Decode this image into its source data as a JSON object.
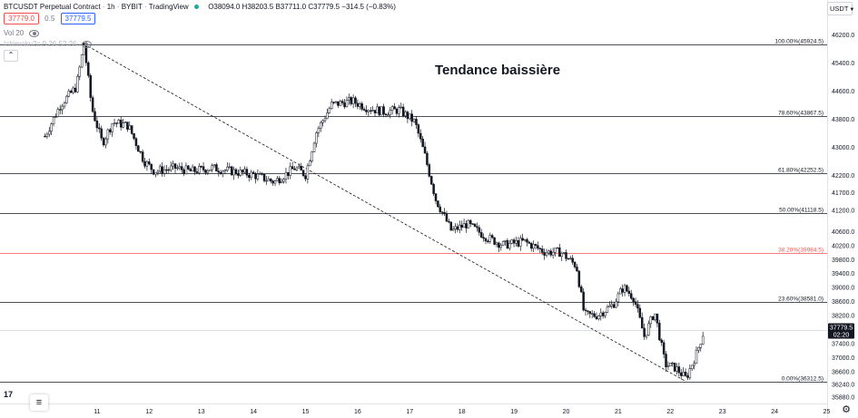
{
  "header": {
    "symbol": "BTCUSDT Perpetual Contract",
    "interval": "1h",
    "exchange": "BYBIT",
    "source": "TradingView",
    "ohlc": "O38094.0 H38203.5 B37711.0 C37779.5 −314.5 (−0.83%)",
    "bid": "37779.0",
    "spread": "0.5",
    "ask": "37779.5",
    "volume": "Vol 20",
    "indicator": "Ichimoku2c 9 26 52 26"
  },
  "currency_button": "USDT",
  "chart_data": {
    "type": "candlestick",
    "title": "Tendance baissière",
    "x_ticks": [
      "11",
      "12",
      "13",
      "14",
      "15",
      "16",
      "17",
      "18",
      "19",
      "20",
      "21",
      "22",
      "23",
      "24",
      "25"
    ],
    "y_ticks": [
      "46200.0",
      "45400.0",
      "44600.0",
      "43800.0",
      "43000.0",
      "42200.0",
      "41700.0",
      "41200.0",
      "40600.0",
      "40200.0",
      "39800.0",
      "39400.0",
      "39000.0",
      "38600.0",
      "38200.0",
      "37400.0",
      "37000.0",
      "36600.0",
      "36240.0",
      "35880.0"
    ],
    "y_range": [
      35800,
      46350
    ],
    "current_price": "37779.5",
    "countdown": "02:20",
    "fib_levels": [
      {
        "label": "100.00%(45924.5)",
        "value": 45924.5,
        "color": "#131722"
      },
      {
        "label": "78.60%(43867.5)",
        "value": 43867.5,
        "color": "#131722"
      },
      {
        "label": "61.80%(42252.5)",
        "value": 42252.5,
        "color": "#131722"
      },
      {
        "label": "50.00%(41118.5)",
        "value": 41118.5,
        "color": "#131722"
      },
      {
        "label": "38.20%(39984.5)",
        "value": 39984.5,
        "color": "#ef5350"
      },
      {
        "label": "23.60%(38581.0)",
        "value": 38581.0,
        "color": "#131722"
      },
      {
        "label": "0.00%(36312.5)",
        "value": 36312.5,
        "color": "#131722"
      }
    ],
    "trend_line": {
      "from": {
        "x": 10.75,
        "y": 45924.5
      },
      "to": {
        "x": 22.3,
        "y": 36312.5
      }
    },
    "candle_anchors": [
      [
        10.0,
        43300
      ],
      [
        10.3,
        44200
      ],
      [
        10.6,
        44700
      ],
      [
        10.75,
        45924.5
      ],
      [
        10.9,
        44100
      ],
      [
        11.1,
        43100
      ],
      [
        11.3,
        43700
      ],
      [
        11.6,
        43600
      ],
      [
        11.9,
        42600
      ],
      [
        12.1,
        42300
      ],
      [
        12.5,
        42400
      ],
      [
        12.8,
        42300
      ],
      [
        13.2,
        42400
      ],
      [
        13.6,
        42300
      ],
      [
        14.0,
        42200
      ],
      [
        14.4,
        42000
      ],
      [
        14.8,
        42400
      ],
      [
        15.0,
        42200
      ],
      [
        15.2,
        43400
      ],
      [
        15.5,
        44200
      ],
      [
        15.9,
        44300
      ],
      [
        16.2,
        44100
      ],
      [
        16.5,
        44000
      ],
      [
        16.8,
        44050
      ],
      [
        17.1,
        43700
      ],
      [
        17.3,
        42700
      ],
      [
        17.5,
        41500
      ],
      [
        17.8,
        40600
      ],
      [
        18.1,
        40800
      ],
      [
        18.5,
        40400
      ],
      [
        18.8,
        40200
      ],
      [
        19.2,
        40300
      ],
      [
        19.6,
        40000
      ],
      [
        19.9,
        40000
      ],
      [
        20.2,
        39600
      ],
      [
        20.35,
        38200
      ],
      [
        20.6,
        38200
      ],
      [
        20.9,
        38500
      ],
      [
        21.1,
        39000
      ],
      [
        21.3,
        38700
      ],
      [
        21.5,
        37600
      ],
      [
        21.7,
        38300
      ],
      [
        21.9,
        36800
      ],
      [
        22.1,
        36700
      ],
      [
        22.3,
        36400
      ],
      [
        22.5,
        37100
      ],
      [
        22.65,
        37779.5
      ]
    ]
  }
}
